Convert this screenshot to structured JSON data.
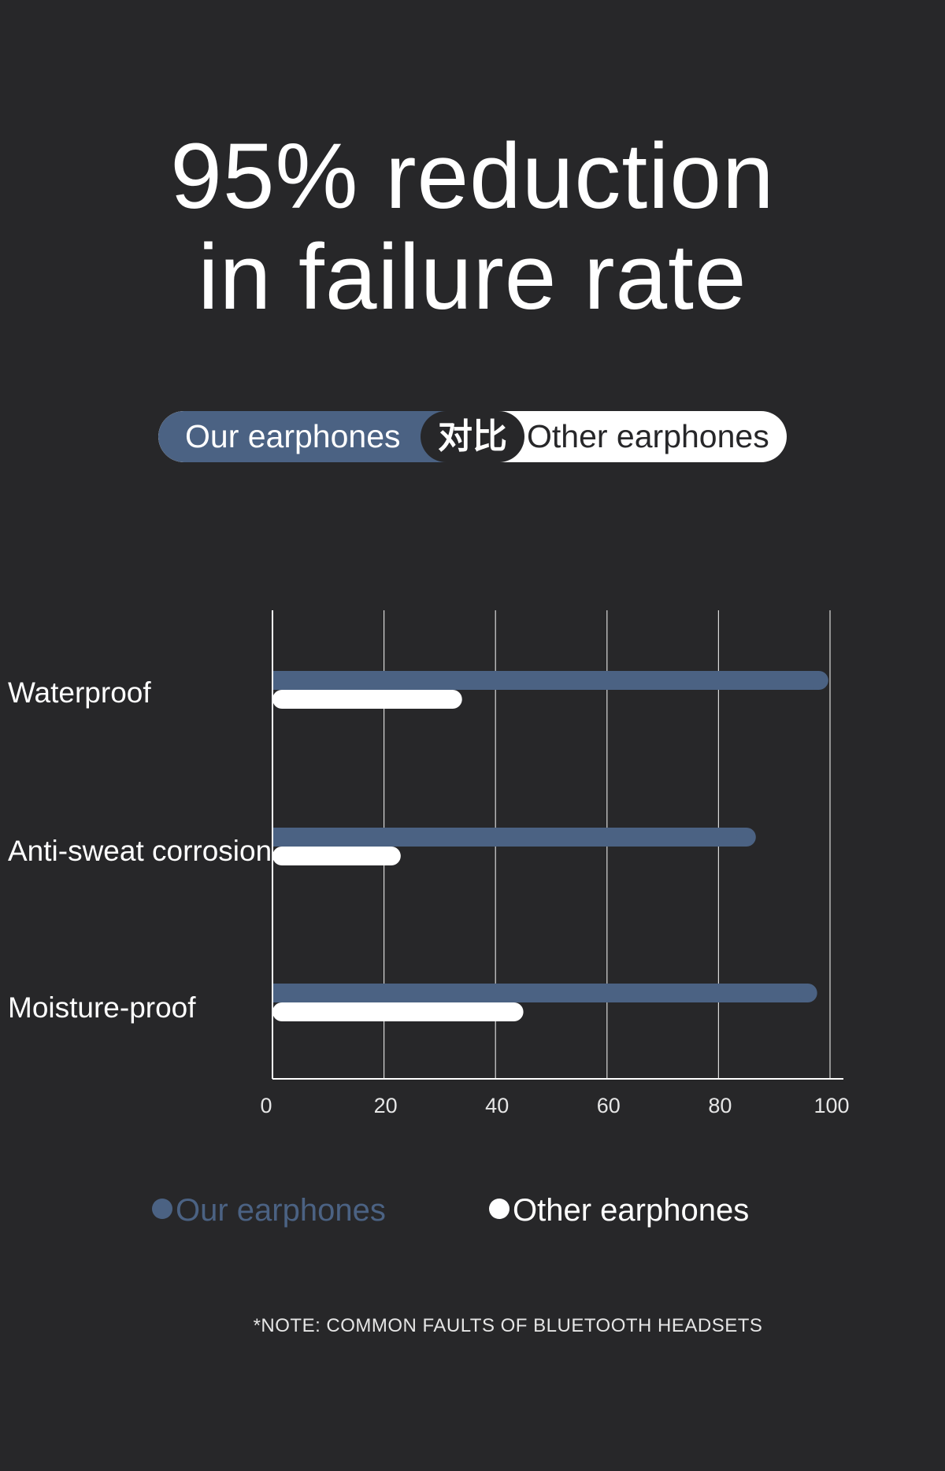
{
  "headline": {
    "line1": "95% reduction",
    "line2": "in failure rate"
  },
  "compare_pill": {
    "left_label": "Our earphones",
    "middle_label": "对比",
    "right_label": "Other earphones"
  },
  "chart_data": {
    "type": "bar",
    "orientation": "horizontal",
    "categories": [
      "Waterproof",
      "Anti-sweat corrosion",
      "Moisture-proof"
    ],
    "series": [
      {
        "name": "Our earphones",
        "values": [
          98,
          85,
          96
        ],
        "color": "#4b6283"
      },
      {
        "name": "Other earphones",
        "values": [
          34,
          23,
          45
        ],
        "color": "#ffffff"
      }
    ],
    "x_ticks": [
      "0",
      "20",
      "40",
      "60",
      "80",
      "100"
    ],
    "xlim": [
      0,
      100
    ],
    "grid": true,
    "legend_placement": "bottom"
  },
  "note": "*NOTE: COMMON FAULTS OF BLUETOOTH HEADSETS",
  "colors": {
    "background": "#272729",
    "accent": "#4b6283",
    "text": "#ffffff"
  }
}
